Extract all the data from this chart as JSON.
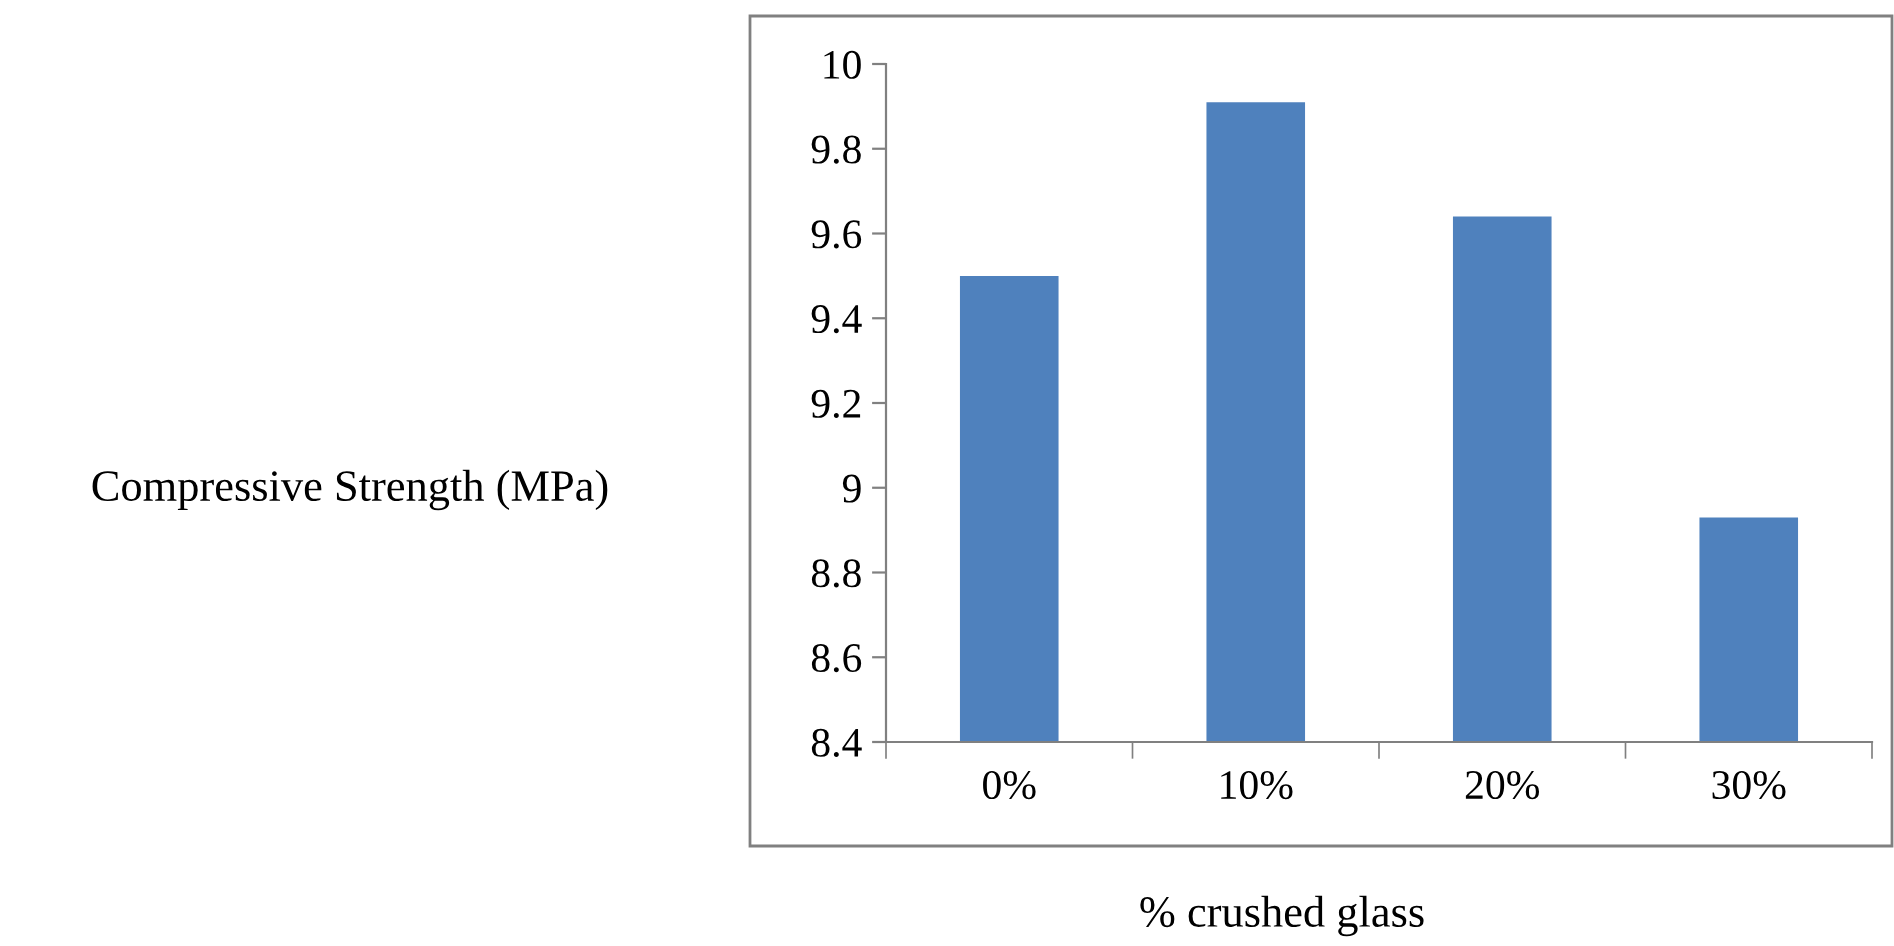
{
  "chart_data": {
    "type": "bar",
    "xlabel": "% crushed glass",
    "ylabel": "Compressive Strength (MPa)",
    "categories": [
      "0%",
      "10%",
      "20%",
      "30%"
    ],
    "values": [
      9.5,
      9.91,
      9.64,
      8.93
    ],
    "color": "#4f81bd",
    "ylim": [
      8.4,
      10
    ],
    "yticks": [
      {
        "value": 8.4,
        "label": "8.4"
      },
      {
        "value": 8.6,
        "label": "8.6"
      },
      {
        "value": 8.8,
        "label": "8.8"
      },
      9,
      {
        "value": 9.2,
        "label": "9.2"
      },
      {
        "value": 9.4,
        "label": "9.4"
      },
      {
        "value": 9.6,
        "label": "9.6"
      },
      {
        "value": 9.8,
        "label": "9.8"
      },
      10
    ],
    "grid": false,
    "legend": false
  }
}
